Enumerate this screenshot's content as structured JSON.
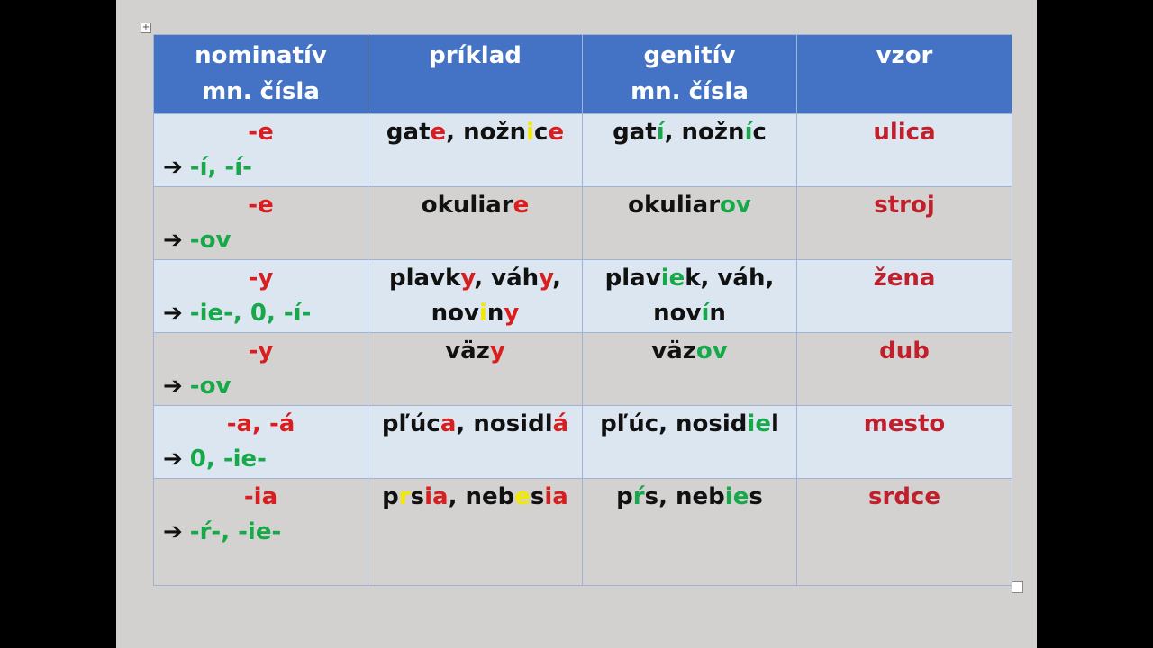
{
  "colors": {
    "header_bg": "#4472c4",
    "row_light": "#dce6f1",
    "row_grey": "#d3d2d0",
    "ending_red": "#d81e1e",
    "ending_green": "#17a84a",
    "highlight_yellow": "#f2e800",
    "vzor_red": "#c0202b"
  },
  "handles": {
    "move_icon": "move-handle-icon",
    "resize_icon": "resize-handle-icon",
    "arrow_symbol": "➔"
  },
  "header": {
    "col1_line1": "nominatív",
    "col1_line2": "mn. čísla",
    "col2": "príklad",
    "col3_line1": "genitív",
    "col3_line2": "mn. čísla",
    "col4": "vzor"
  },
  "rows": [
    {
      "nom_ending": "-e",
      "gen_ending": "-í, -í-",
      "priklad": [
        {
          "t": "gat",
          "c": "dark"
        },
        {
          "t": "e",
          "c": "red"
        },
        {
          "t": ", nožn",
          "c": "dark"
        },
        {
          "t": "i",
          "c": "yellow"
        },
        {
          "t": "c",
          "c": "dark"
        },
        {
          "t": "e",
          "c": "red"
        }
      ],
      "genitiv": [
        {
          "t": "gat",
          "c": "dark"
        },
        {
          "t": "í",
          "c": "green"
        },
        {
          "t": ", nožn",
          "c": "dark"
        },
        {
          "t": "í",
          "c": "green"
        },
        {
          "t": "c",
          "c": "dark"
        }
      ],
      "vzor": "ulica"
    },
    {
      "nom_ending": "-e",
      "gen_ending": "-ov",
      "priklad": [
        {
          "t": "okuliar",
          "c": "dark"
        },
        {
          "t": "e",
          "c": "red"
        }
      ],
      "genitiv": [
        {
          "t": "okuliar",
          "c": "dark"
        },
        {
          "t": "ov",
          "c": "green"
        }
      ],
      "vzor": "stroj"
    },
    {
      "nom_ending": "-y",
      "gen_ending": "-ie-, 0, -í-",
      "priklad": [
        {
          "t": "plavk",
          "c": "dark"
        },
        {
          "t": "y",
          "c": "red"
        },
        {
          "t": ", váh",
          "c": "dark"
        },
        {
          "t": "y",
          "c": "red"
        },
        {
          "t": ",",
          "c": "dark"
        },
        {
          "t": "\n",
          "c": "dark"
        },
        {
          "t": "nov",
          "c": "dark"
        },
        {
          "t": "i",
          "c": "yellow"
        },
        {
          "t": "n",
          "c": "dark"
        },
        {
          "t": "y",
          "c": "red"
        }
      ],
      "genitiv": [
        {
          "t": "plav",
          "c": "dark"
        },
        {
          "t": "ie",
          "c": "green"
        },
        {
          "t": "k, váh,",
          "c": "dark"
        },
        {
          "t": "\n",
          "c": "dark"
        },
        {
          "t": "nov",
          "c": "dark"
        },
        {
          "t": "í",
          "c": "green"
        },
        {
          "t": "n",
          "c": "dark"
        }
      ],
      "vzor": "žena"
    },
    {
      "nom_ending": "-y",
      "gen_ending": "-ov",
      "priklad": [
        {
          "t": "väz",
          "c": "dark"
        },
        {
          "t": "y",
          "c": "red"
        }
      ],
      "genitiv": [
        {
          "t": "väz",
          "c": "dark"
        },
        {
          "t": "ov",
          "c": "green"
        }
      ],
      "vzor": "dub"
    },
    {
      "nom_ending": "-a, -á",
      "gen_ending": "0, -ie-",
      "priklad": [
        {
          "t": "pľúc",
          "c": "dark"
        },
        {
          "t": "a",
          "c": "red"
        },
        {
          "t": ", nosidl",
          "c": "dark"
        },
        {
          "t": "á",
          "c": "red"
        }
      ],
      "genitiv": [
        {
          "t": "pľúc, nosid",
          "c": "dark"
        },
        {
          "t": "ie",
          "c": "green"
        },
        {
          "t": "l",
          "c": "dark"
        }
      ],
      "vzor": "mesto"
    },
    {
      "nom_ending": "-ia",
      "gen_ending": "-ŕ-, -ie-",
      "priklad": [
        {
          "t": "p",
          "c": "dark"
        },
        {
          "t": "r",
          "c": "yellow"
        },
        {
          "t": "s",
          "c": "dark"
        },
        {
          "t": "ia",
          "c": "red"
        },
        {
          "t": ", neb",
          "c": "dark"
        },
        {
          "t": "e",
          "c": "yellow"
        },
        {
          "t": "s",
          "c": "dark"
        },
        {
          "t": "ia",
          "c": "red"
        }
      ],
      "genitiv": [
        {
          "t": "p",
          "c": "dark"
        },
        {
          "t": "ŕ",
          "c": "green"
        },
        {
          "t": "s, neb",
          "c": "dark"
        },
        {
          "t": "ie",
          "c": "green"
        },
        {
          "t": "s",
          "c": "dark"
        }
      ],
      "vzor": "srdce"
    }
  ]
}
